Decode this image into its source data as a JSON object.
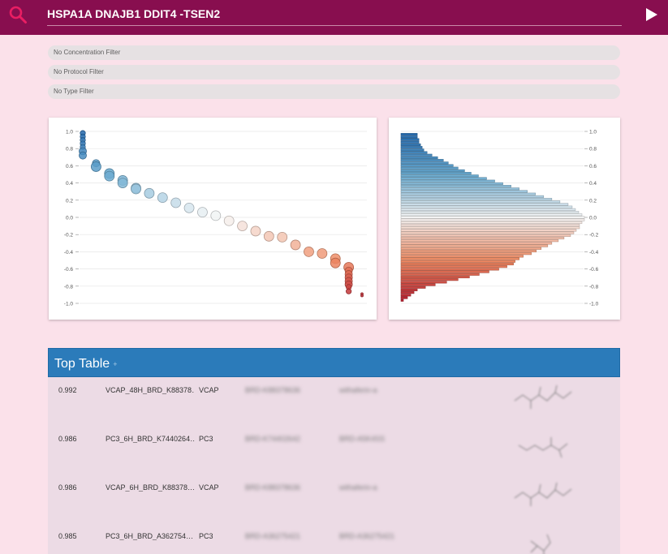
{
  "search": {
    "query": "HSPA1A DNAJB1 DDIT4 -TSEN2"
  },
  "filters": [
    {
      "label": "No Concentration Filter"
    },
    {
      "label": "No Protocol Filter"
    },
    {
      "label": "No Type Filter"
    }
  ],
  "colors": {
    "topbar": "#880e4f",
    "accent": "#e91e63",
    "background": "#fbe1ea",
    "table_header": "#2b7bba",
    "positive": "#2166ac",
    "negative": "#b2182b"
  },
  "chart_data": [
    {
      "type": "scatter",
      "ylim": [
        -1.0,
        1.0
      ],
      "yticks": [
        "1.0",
        "0.8",
        "0.6",
        "0.4",
        "0.2",
        "0.0",
        "-0.2",
        "-0.4",
        "-0.6",
        "-0.8",
        "-1.0"
      ],
      "points": [
        {
          "x": 0,
          "y": 0.98
        },
        {
          "x": 0,
          "y": 0.94
        },
        {
          "x": 0,
          "y": 0.9
        },
        {
          "x": 0,
          "y": 0.86
        },
        {
          "x": 0,
          "y": 0.82
        },
        {
          "x": 0,
          "y": 0.77
        },
        {
          "x": 0,
          "y": 0.72
        },
        {
          "x": 1,
          "y": 0.63
        },
        {
          "x": 1,
          "y": 0.59
        },
        {
          "x": 2,
          "y": 0.51
        },
        {
          "x": 2,
          "y": 0.48
        },
        {
          "x": 3,
          "y": 0.43
        },
        {
          "x": 3,
          "y": 0.4
        },
        {
          "x": 4,
          "y": 0.34
        },
        {
          "x": 4,
          "y": 0.33
        },
        {
          "x": 5,
          "y": 0.28
        },
        {
          "x": 6,
          "y": 0.23
        },
        {
          "x": 7,
          "y": 0.17
        },
        {
          "x": 8,
          "y": 0.11
        },
        {
          "x": 9,
          "y": 0.06
        },
        {
          "x": 10,
          "y": 0.02
        },
        {
          "x": 11,
          "y": -0.04
        },
        {
          "x": 12,
          "y": -0.1
        },
        {
          "x": 13,
          "y": -0.16
        },
        {
          "x": 14,
          "y": -0.22
        },
        {
          "x": 15,
          "y": -0.23
        },
        {
          "x": 16,
          "y": -0.32
        },
        {
          "x": 17,
          "y": -0.4
        },
        {
          "x": 18,
          "y": -0.42
        },
        {
          "x": 19,
          "y": -0.48
        },
        {
          "x": 19,
          "y": -0.53
        },
        {
          "x": 20,
          "y": -0.58
        },
        {
          "x": 20,
          "y": -0.62
        },
        {
          "x": 20,
          "y": -0.66
        },
        {
          "x": 20,
          "y": -0.7
        },
        {
          "x": 20,
          "y": -0.74
        },
        {
          "x": 20,
          "y": -0.78
        },
        {
          "x": 20,
          "y": -0.81
        },
        {
          "x": 20,
          "y": -0.86
        },
        {
          "x": 21,
          "y": -0.89
        },
        {
          "x": 21,
          "y": -0.91
        }
      ]
    },
    {
      "type": "bar",
      "orientation": "horizontal",
      "ylim": [
        -1.0,
        1.0
      ],
      "yticks": [
        "1.0",
        "0.8",
        "0.6",
        "0.4",
        "0.2",
        "0.0",
        "-0.2",
        "-0.4",
        "-0.6",
        "-0.8",
        "-1.0"
      ],
      "values": [
        20,
        20,
        22,
        22,
        24,
        26,
        28,
        32,
        38,
        45,
        52,
        58,
        64,
        70,
        78,
        86,
        95,
        105,
        115,
        125,
        135,
        145,
        155,
        165,
        175,
        185,
        195,
        205,
        210,
        214,
        218,
        222,
        225,
        225,
        222,
        219,
        219,
        215,
        212,
        208,
        200,
        193,
        185,
        180,
        172,
        166,
        160,
        150,
        145,
        140,
        138,
        130,
        120,
        108,
        96,
        84,
        70,
        56,
        42,
        30,
        20,
        16,
        12,
        8,
        3
      ]
    }
  ],
  "table": {
    "title": "Top Table",
    "info_glyph": "+",
    "rows": [
      {
        "score": "0.992",
        "signature": "VCAP_48H_BRD_K88378…",
        "cell": "VCAP",
        "blur1": "BRD-K88378636",
        "blur2": "withaferin-a"
      },
      {
        "score": "0.986",
        "signature": "PC3_6H_BRD_K7440264…",
        "cell": "PC3",
        "blur1": "BRD-K74402642",
        "blur2": "BRD-A5K4SS"
      },
      {
        "score": "0.986",
        "signature": "VCAP_6H_BRD_K88378…",
        "cell": "VCAP",
        "blur1": "BRD-K88378636",
        "blur2": "withaferin-a"
      },
      {
        "score": "0.985",
        "signature": "PC3_6H_BRD_A362754…",
        "cell": "PC3",
        "blur1": "BRD-A36275421",
        "blur2": "BRD-A36275421"
      }
    ]
  }
}
